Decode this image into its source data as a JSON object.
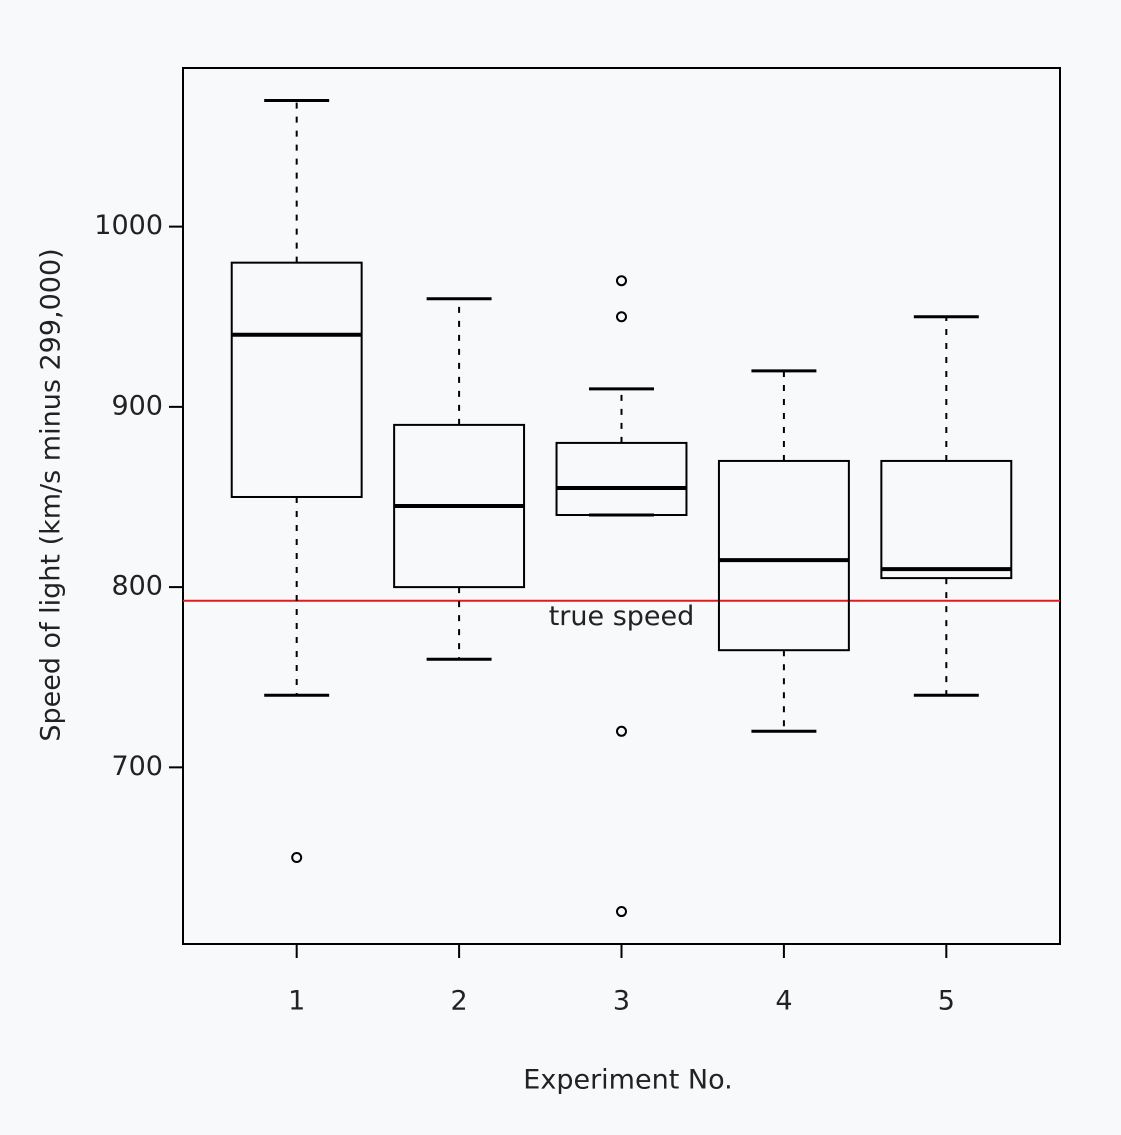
{
  "chart_data": {
    "type": "boxplot",
    "x_label": "Experiment No.",
    "y_label": "Speed of light (km/s minus 299,000)",
    "categories": [
      "1",
      "2",
      "3",
      "4",
      "5"
    ],
    "boxes": [
      {
        "min": 740,
        "q1": 850,
        "median": 940,
        "q3": 980,
        "max": 1070,
        "outliers": [
          650
        ]
      },
      {
        "min": 760,
        "q1": 800,
        "median": 845,
        "q3": 890,
        "max": 960,
        "outliers": []
      },
      {
        "min": 840,
        "q1": 840,
        "median": 855,
        "q3": 880,
        "max": 910,
        "outliers": [
          620,
          720,
          950,
          970
        ]
      },
      {
        "min": 720,
        "q1": 765,
        "median": 815,
        "q3": 870,
        "max": 920,
        "outliers": []
      },
      {
        "min": 740,
        "q1": 805,
        "median": 810,
        "q3": 870,
        "max": 950,
        "outliers": []
      }
    ],
    "color": "#000000",
    "ylim": [
      602,
      1088
    ],
    "yticks": [
      700,
      800,
      900,
      1000
    ],
    "reference_line": {
      "value": 792.458,
      "color": "#e41a1c",
      "label": "true speed",
      "label_x": 3
    }
  }
}
